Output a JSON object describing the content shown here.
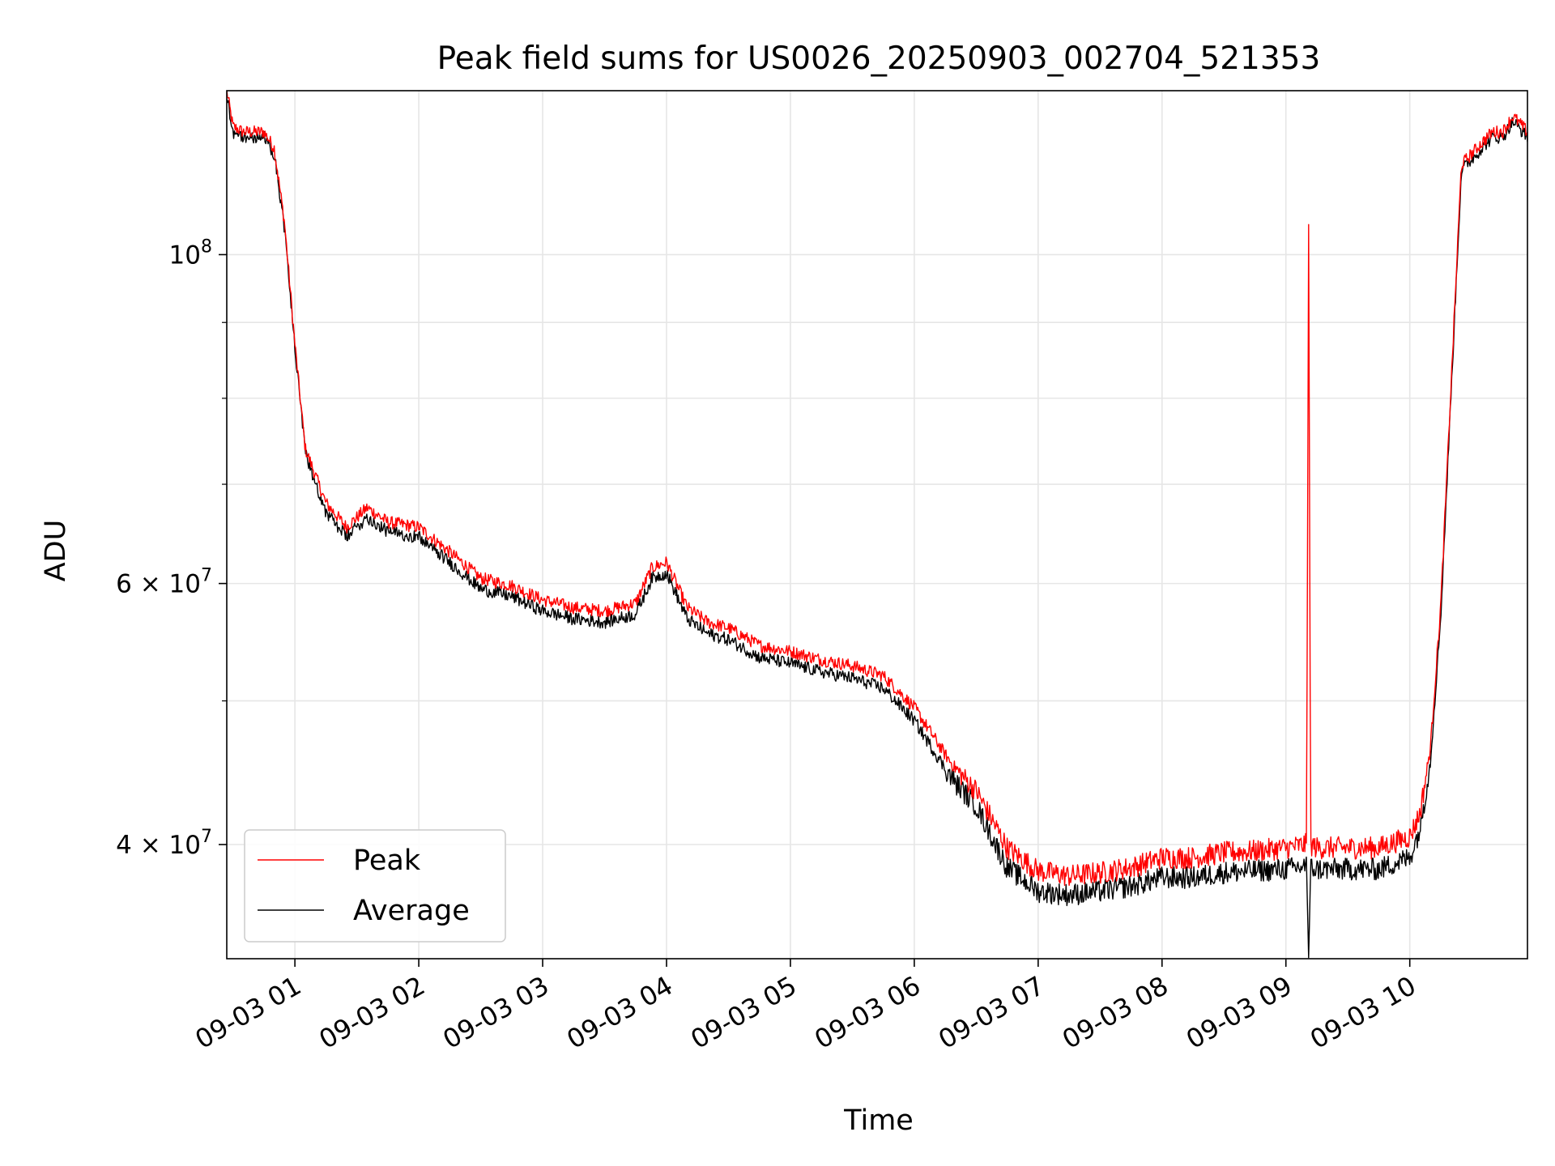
{
  "chart_data": {
    "type": "line",
    "title": "Peak field sums for US0026_20250903_002704_521353",
    "xlabel": "Time",
    "ylabel": "ADU",
    "yscale": "log",
    "grid": true,
    "legend_position": "lower-left",
    "x_range": [
      "09-03 00:27",
      "09-03 10:57"
    ],
    "ylim": [
      33500000,
      129000000
    ],
    "x_ticks": [
      "09-03 01",
      "09-03 02",
      "09-03 03",
      "09-03 04",
      "09-03 05",
      "09-03 06",
      "09-03 07",
      "09-03 08",
      "09-03 09",
      "09-03 10"
    ],
    "y_tick_labels": [
      {
        "value": 100000000,
        "mantissa": "",
        "exponent": "8"
      },
      {
        "value": 60000000,
        "mantissa": "6",
        "exponent": "7"
      },
      {
        "value": 40000000,
        "mantissa": "4",
        "exponent": "7"
      }
    ],
    "y_minor_ticks": [
      50000000,
      70000000,
      80000000,
      90000000
    ],
    "x": [
      "09-03 00:27",
      "09-03 00:30",
      "09-03 00:35",
      "09-03 00:45",
      "09-03 00:50",
      "09-03 00:55",
      "09-03 01:00",
      "09-03 01:05",
      "09-03 01:15",
      "09-03 01:25",
      "09-03 01:35",
      "09-03 01:45",
      "09-03 02:00",
      "09-03 02:15",
      "09-03 02:30",
      "09-03 02:45",
      "09-03 03:00",
      "09-03 03:15",
      "09-03 03:30",
      "09-03 03:45",
      "09-03 03:53",
      "09-03 04:00",
      "09-03 04:10",
      "09-03 04:20",
      "09-03 04:30",
      "09-03 04:45",
      "09-03 05:00",
      "09-03 05:15",
      "09-03 05:30",
      "09-03 05:45",
      "09-03 06:00",
      "09-03 06:15",
      "09-03 06:20",
      "09-03 06:30",
      "09-03 06:45",
      "09-03 07:00",
      "09-03 07:15",
      "09-03 07:30",
      "09-03 07:45",
      "09-03 08:00",
      "09-03 08:15",
      "09-03 08:30",
      "09-03 08:45",
      "09-03 09:00",
      "09-03 09:10",
      "09-03 09:11",
      "09-03 09:12",
      "09-03 09:15",
      "09-03 09:30",
      "09-03 09:45",
      "09-03 10:00",
      "09-03 10:05",
      "09-03 10:10",
      "09-03 10:15",
      "09-03 10:25",
      "09-03 10:35",
      "09-03 10:40",
      "09-03 10:45",
      "09-03 10:50",
      "09-03 10:57"
    ],
    "series": [
      {
        "name": "Peak",
        "color": "#ff0000",
        "values": [
          129000000,
          122000000,
          121000000,
          121000000,
          118000000,
          105000000,
          87000000,
          74000000,
          68000000,
          65500000,
          67500000,
          66000000,
          65500000,
          63000000,
          60500000,
          59800000,
          58500000,
          57800000,
          57500000,
          58200000,
          61500000,
          62000000,
          57800000,
          56500000,
          56000000,
          54500000,
          54000000,
          53300000,
          52800000,
          52000000,
          49500000,
          46000000,
          45000000,
          43500000,
          39800000,
          38400000,
          38100000,
          38300000,
          38600000,
          39200000,
          39200000,
          39500000,
          39600000,
          39800000,
          40000000,
          106000000,
          40000000,
          39800000,
          39800000,
          39800000,
          40500000,
          42000000,
          46500000,
          58000000,
          115000000,
          119000000,
          121000000,
          121000000,
          124000000,
          121000000
        ]
      },
      {
        "name": "Average",
        "color": "#000000",
        "values": [
          128000000,
          121000000,
          120000000,
          120000000,
          117000000,
          104000000,
          86500000,
          73500000,
          67000000,
          64500000,
          66500000,
          65000000,
          64500000,
          62000000,
          59500000,
          58800000,
          57500000,
          56800000,
          56500000,
          57200000,
          60500000,
          61000000,
          56800000,
          55500000,
          55000000,
          53500000,
          53000000,
          52300000,
          51800000,
          51000000,
          48500000,
          45000000,
          44000000,
          42500000,
          38600000,
          37200000,
          37000000,
          37200000,
          37500000,
          38000000,
          38000000,
          38300000,
          38400000,
          38500000,
          38700000,
          33500000,
          38600000,
          38500000,
          38500000,
          38500000,
          39200000,
          41000000,
          45500000,
          57000000,
          114000000,
          118000000,
          120000000,
          120000000,
          123000000,
          120000000
        ]
      }
    ]
  }
}
